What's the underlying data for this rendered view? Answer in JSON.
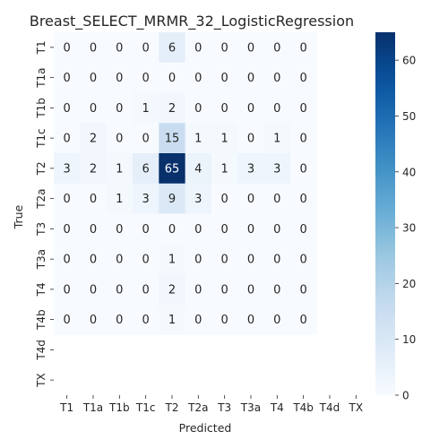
{
  "chart_data": {
    "type": "heatmap",
    "title": "Breast_SELECT_MRMR_32_LogisticRegression",
    "xlabel": "Predicted",
    "ylabel": "True",
    "x_categories": [
      "T1",
      "T1a",
      "T1b",
      "T1c",
      "T2",
      "T2a",
      "T3",
      "T3a",
      "T4",
      "T4b",
      "T4d",
      "TX"
    ],
    "y_categories": [
      "T1",
      "T1a",
      "T1b",
      "T1c",
      "T2",
      "T2a",
      "T3",
      "T3a",
      "T4",
      "T4b",
      "T4d",
      "TX"
    ],
    "values": [
      [
        0,
        0,
        0,
        0,
        6,
        0,
        0,
        0,
        0,
        0,
        null,
        null
      ],
      [
        0,
        0,
        0,
        0,
        0,
        0,
        0,
        0,
        0,
        0,
        null,
        null
      ],
      [
        0,
        0,
        0,
        1,
        2,
        0,
        0,
        0,
        0,
        0,
        null,
        null
      ],
      [
        0,
        2,
        0,
        0,
        15,
        1,
        1,
        0,
        1,
        0,
        null,
        null
      ],
      [
        3,
        2,
        1,
        6,
        65,
        4,
        1,
        3,
        3,
        0,
        null,
        null
      ],
      [
        0,
        0,
        1,
        3,
        9,
        3,
        0,
        0,
        0,
        0,
        null,
        null
      ],
      [
        0,
        0,
        0,
        0,
        0,
        0,
        0,
        0,
        0,
        0,
        null,
        null
      ],
      [
        0,
        0,
        0,
        0,
        1,
        0,
        0,
        0,
        0,
        0,
        null,
        null
      ],
      [
        0,
        0,
        0,
        0,
        2,
        0,
        0,
        0,
        0,
        0,
        null,
        null
      ],
      [
        0,
        0,
        0,
        0,
        1,
        0,
        0,
        0,
        0,
        0,
        null,
        null
      ],
      [
        null,
        null,
        null,
        null,
        null,
        null,
        null,
        null,
        null,
        null,
        null,
        null
      ],
      [
        null,
        null,
        null,
        null,
        null,
        null,
        null,
        null,
        null,
        null,
        null,
        null
      ]
    ],
    "colormap": "Blues",
    "colorbar": {
      "range": [
        0,
        65
      ],
      "ticks": [
        0,
        10,
        20,
        30,
        40,
        50,
        60
      ]
    },
    "grid": false
  }
}
